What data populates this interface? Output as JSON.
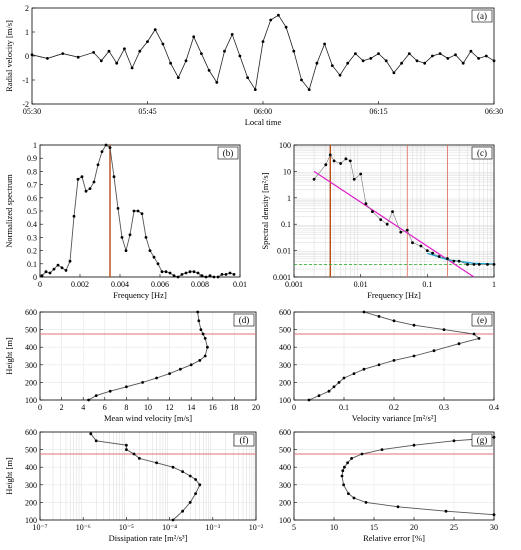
{
  "chart_data": [
    {
      "id": "a",
      "type": "line",
      "panel_label": "(a)",
      "xlabel": "Local time",
      "ylabel": "Radial velocity [m/s]",
      "xticks": [
        "05:30",
        "05:45",
        "06:00",
        "06:15",
        "06:30"
      ],
      "xlim": [
        0,
        60
      ],
      "ylim": [
        -2,
        2
      ],
      "yticks": [
        -2,
        -1,
        0,
        1,
        2
      ],
      "series": [
        {
          "x": [
            0,
            2,
            4,
            6,
            8,
            9,
            10,
            11,
            12,
            13,
            14,
            15,
            16,
            17,
            18,
            19,
            20,
            21,
            22,
            23,
            24,
            25,
            26,
            27,
            28,
            29,
            30,
            31,
            32,
            33,
            34,
            35,
            36,
            37,
            38,
            39,
            40,
            41,
            42,
            43,
            44,
            45,
            46,
            47,
            48,
            49,
            50,
            51,
            52,
            53,
            54,
            55,
            56,
            57,
            58,
            59,
            60
          ],
          "y": [
            0.05,
            -0.1,
            0.1,
            -0.05,
            0.15,
            -0.2,
            0.2,
            -0.3,
            0.3,
            -0.5,
            0.2,
            0.6,
            1.1,
            0.5,
            -0.3,
            -0.9,
            -0.2,
            0.8,
            0.1,
            -0.6,
            -1.1,
            0.2,
            0.9,
            0.0,
            -0.9,
            -1.4,
            0.6,
            1.5,
            1.7,
            1.2,
            0.2,
            -1.0,
            -1.4,
            -0.3,
            0.5,
            -0.4,
            -0.8,
            -0.3,
            0.1,
            -0.2,
            -0.1,
            0.1,
            -0.2,
            -0.7,
            -0.3,
            0.1,
            -0.2,
            -0.3,
            0.0,
            0.1,
            -0.1,
            0.05,
            -0.3,
            0.2,
            -0.1,
            0.0,
            -0.2
          ]
        }
      ]
    },
    {
      "id": "b",
      "type": "line",
      "panel_label": "(b)",
      "xlabel": "Frequency [Hz]",
      "ylabel": "Normalized spectrum",
      "xlim": [
        0,
        0.01
      ],
      "ylim": [
        0,
        1
      ],
      "xticks": [
        0,
        0.002,
        0.004,
        0.006,
        0.008,
        0.01
      ],
      "yticks": [
        0,
        0.1,
        0.2,
        0.3,
        0.4,
        0.5,
        0.6,
        0.7,
        0.8,
        0.9,
        1
      ],
      "vline": 0.0035,
      "series": [
        {
          "x": [
            0.0001,
            0.0003,
            0.0005,
            0.0007,
            0.0009,
            0.0011,
            0.0013,
            0.0015,
            0.0017,
            0.0019,
            0.0021,
            0.0023,
            0.0025,
            0.0027,
            0.0029,
            0.0031,
            0.0033,
            0.0035,
            0.0037,
            0.0039,
            0.0041,
            0.0043,
            0.0045,
            0.0047,
            0.0049,
            0.0051,
            0.0053,
            0.0055,
            0.0057,
            0.0059,
            0.0061,
            0.0063,
            0.0065,
            0.0067,
            0.0069,
            0.0071,
            0.0073,
            0.0075,
            0.0077,
            0.0079,
            0.0081,
            0.0083,
            0.0085,
            0.0087,
            0.0089,
            0.0091,
            0.0093,
            0.0095,
            0.0097
          ],
          "y": [
            0.01,
            0.04,
            0.03,
            0.06,
            0.09,
            0.07,
            0.05,
            0.12,
            0.46,
            0.74,
            0.76,
            0.65,
            0.67,
            0.72,
            0.85,
            0.95,
            1.0,
            0.98,
            0.76,
            0.52,
            0.3,
            0.2,
            0.32,
            0.5,
            0.5,
            0.48,
            0.3,
            0.2,
            0.15,
            0.1,
            0.04,
            0.04,
            0.03,
            0.01,
            0.0,
            0.02,
            0.03,
            0.04,
            0.04,
            0.03,
            0.01,
            0.0,
            0.01,
            0.0,
            0.0,
            0.02,
            0.02,
            0.03,
            0.02
          ]
        }
      ]
    },
    {
      "id": "c",
      "type": "scatter",
      "panel_label": "(c)",
      "xlabel": "Frequency [Hz]",
      "ylabel": "Spectral density [m²/s]",
      "xscale": "log",
      "yscale": "log",
      "xlim": [
        0.001,
        1
      ],
      "ylim": [
        0.001,
        100
      ],
      "xticks": [
        "0.001",
        "0.01",
        "0.1",
        "1"
      ],
      "yticks": [
        "0.001",
        "0.01",
        "0.1",
        "1",
        "10",
        "100"
      ],
      "vlines": [
        0.0035,
        0.05,
        0.2
      ],
      "noise_level": 0.003,
      "fit_line": {
        "x": [
          0.002,
          0.5
        ],
        "y": [
          10,
          0.001
        ]
      },
      "fit_curve": {
        "x": [
          0.1,
          0.2,
          0.5,
          1
        ],
        "y": [
          0.008,
          0.0045,
          0.0033,
          0.0031
        ]
      },
      "series": [
        {
          "x": [
            0.002,
            0.003,
            0.0035,
            0.004,
            0.005,
            0.006,
            0.007,
            0.008,
            0.01,
            0.012,
            0.015,
            0.02,
            0.025,
            0.03,
            0.04,
            0.05,
            0.06,
            0.08,
            0.1,
            0.12,
            0.15,
            0.2,
            0.25,
            0.3,
            0.4,
            0.5,
            0.6,
            0.8,
            1.0
          ],
          "y": [
            5,
            18,
            42,
            25,
            20,
            30,
            25,
            5,
            8,
            0.6,
            0.3,
            0.15,
            0.1,
            0.3,
            0.05,
            0.06,
            0.02,
            0.015,
            0.01,
            0.008,
            0.006,
            0.005,
            0.004,
            0.004,
            0.003,
            0.003,
            0.003,
            0.003,
            0.003
          ]
        }
      ]
    },
    {
      "id": "d",
      "type": "line",
      "panel_label": "(d)",
      "xlabel": "Mean wind velocity [m/s]",
      "ylabel": "Height [m]",
      "xlim": [
        0,
        20
      ],
      "ylim": [
        100,
        600
      ],
      "xticks": [
        0,
        2,
        4,
        6,
        8,
        10,
        12,
        14,
        16,
        18,
        20
      ],
      "yticks": [
        100,
        200,
        300,
        400,
        500,
        600
      ],
      "hline": 475,
      "series": [
        {
          "x": [
            4.5,
            5.2,
            6.5,
            8.0,
            9.5,
            10.8,
            12.0,
            13.0,
            14.0,
            14.8,
            15.3,
            15.5,
            15.3,
            15.1,
            14.9,
            14.7,
            14.6
          ],
          "y": [
            100,
            125,
            150,
            175,
            200,
            225,
            250,
            275,
            300,
            325,
            350,
            400,
            450,
            475,
            500,
            550,
            600
          ]
        }
      ]
    },
    {
      "id": "e",
      "type": "line",
      "panel_label": "(e)",
      "xlabel": "Velocity variance [m²/s²]",
      "xlim": [
        0,
        0.4
      ],
      "ylim": [
        100,
        600
      ],
      "xticks": [
        "0",
        "0.1",
        "0.2",
        "0.3",
        "0.4"
      ],
      "yticks": [
        100,
        200,
        300,
        400,
        500,
        600
      ],
      "hline": 475,
      "series": [
        {
          "x": [
            0.03,
            0.05,
            0.07,
            0.08,
            0.09,
            0.1,
            0.12,
            0.14,
            0.17,
            0.2,
            0.24,
            0.28,
            0.33,
            0.37,
            0.36,
            0.3,
            0.24,
            0.2,
            0.17,
            0.14
          ],
          "y": [
            100,
            125,
            150,
            175,
            200,
            225,
            250,
            275,
            300,
            325,
            350,
            380,
            420,
            450,
            475,
            500,
            525,
            550,
            575,
            600
          ]
        }
      ]
    },
    {
      "id": "f",
      "type": "line",
      "panel_label": "(f)",
      "xlabel": "Dissipation rate [m²/s³]",
      "ylabel": "Height [m]",
      "xscale": "log",
      "xlim": [
        1e-07,
        0.01
      ],
      "ylim": [
        100,
        600
      ],
      "xticks": [
        "10⁻⁷",
        "10⁻⁶",
        "10⁻⁵",
        "10⁻⁴",
        "10⁻³",
        "10⁻²"
      ],
      "yticks": [
        100,
        200,
        300,
        400,
        500,
        600
      ],
      "hline": 475,
      "series": [
        {
          "x": [
            0.00012,
            0.0002,
            0.0003,
            0.0004,
            0.0005,
            0.0004,
            0.0003,
            0.0002,
            0.00012,
            5e-05,
            2e-05,
            1.5e-05,
            1e-05,
            1e-05,
            2e-06,
            1.5e-06
          ],
          "y": [
            100,
            150,
            200,
            250,
            300,
            330,
            350,
            375,
            400,
            425,
            450,
            475,
            500,
            525,
            550,
            590
          ]
        }
      ]
    },
    {
      "id": "g",
      "type": "line",
      "panel_label": "(g)",
      "xlabel": "Relative error [%]",
      "xlim": [
        5,
        30
      ],
      "ylim": [
        100,
        600
      ],
      "xticks": [
        5,
        10,
        15,
        20,
        25,
        30
      ],
      "yticks": [
        100,
        200,
        300,
        400,
        500,
        600
      ],
      "hline": 475,
      "series": [
        {
          "x": [
            30,
            24,
            18,
            14,
            12.5,
            11.8,
            11.2,
            11.0,
            11.1,
            11.3,
            11.7,
            12.2,
            13.5,
            16,
            20,
            25,
            28,
            30
          ],
          "y": [
            130,
            150,
            175,
            200,
            225,
            250,
            300,
            350,
            380,
            400,
            425,
            450,
            475,
            500,
            525,
            550,
            560,
            570
          ]
        }
      ]
    }
  ]
}
